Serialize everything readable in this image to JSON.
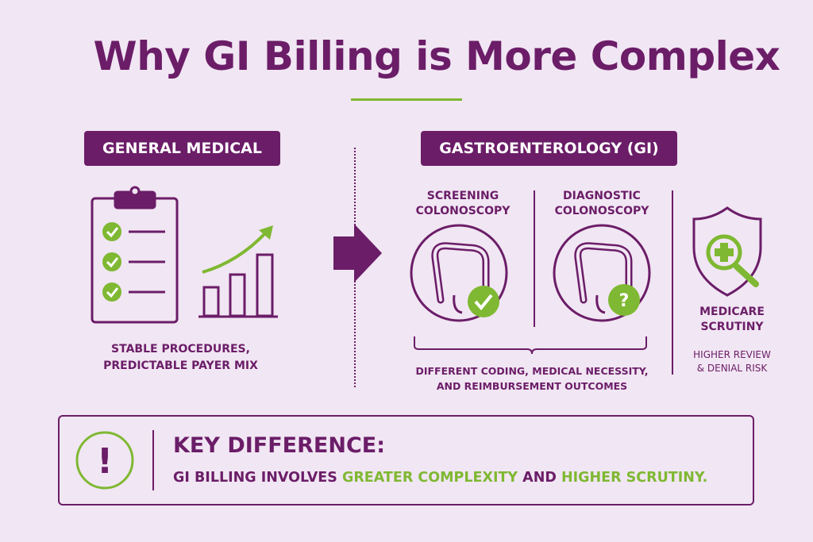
{
  "title": "Why GI Billing is More Complex",
  "left": {
    "header": "GENERAL MEDICAL",
    "caption_line1": "STABLE PROCEDURES,",
    "caption_line2": "PREDICTABLE PAYER MIX",
    "icons": [
      "clipboard-checklist-icon",
      "bar-chart-growth-icon"
    ]
  },
  "right": {
    "header": "GASTROENTEROLOGY (GI)",
    "screening_line1": "SCREENING",
    "screening_line2": "COLONOSCOPY",
    "diagnostic_line1": "DIAGNOSTIC",
    "diagnostic_line2": "COLONOSCOPY",
    "caption_line1": "DIFFERENT CODING, MEDICAL NECESSITY,",
    "caption_line2": "AND REIMBURSEMENT OUTCOMES",
    "medicare_line1": "MEDICARE",
    "medicare_line2": "SCRUTINY",
    "medicare_sub_line1": "HIGHER REVIEW",
    "medicare_sub_line2": "& DENIAL RISK"
  },
  "key": {
    "title": "KEY DIFFERENCE:",
    "part1": "GI BILLING INVOLVES ",
    "highlight1": "GREATER COMPLEXITY",
    "part2": " AND ",
    "highlight2": "HIGHER SCRUTINY."
  },
  "colors": {
    "primary": "#6b1d68",
    "accent": "#7fb832",
    "background": "#f1e6f3"
  }
}
